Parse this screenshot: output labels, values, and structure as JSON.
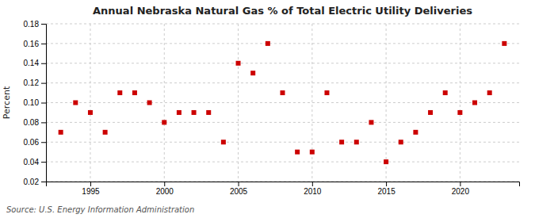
{
  "chart_data": {
    "type": "scatter",
    "title": "Annual Nebraska Natural Gas % of Total Electric Utility Deliveries",
    "ylabel": "Percent",
    "source": "Source: U.S. Energy Information Administration",
    "color": "#cc0000",
    "marker": "square",
    "grid": true,
    "x": [
      1993,
      1994,
      1995,
      1996,
      1997,
      1998,
      1999,
      2000,
      2001,
      2002,
      2003,
      2004,
      2005,
      2006,
      2007,
      2008,
      2009,
      2010,
      2011,
      2012,
      2013,
      2014,
      2015,
      2016,
      2017,
      2018,
      2019,
      2020,
      2021,
      2022,
      2023
    ],
    "values": [
      0.07,
      0.1,
      0.09,
      0.07,
      0.11,
      0.11,
      0.1,
      0.08,
      0.09,
      0.09,
      0.09,
      0.06,
      0.14,
      0.13,
      0.16,
      0.11,
      0.05,
      0.05,
      0.11,
      0.06,
      0.06,
      0.08,
      0.04,
      0.06,
      0.07,
      0.09,
      0.11,
      0.09,
      0.1,
      0.11,
      0.16
    ],
    "xlim": [
      1992,
      2024
    ],
    "ylim": [
      0.02,
      0.18
    ],
    "xticks": [
      1995,
      2000,
      2005,
      2010,
      2015,
      2020
    ],
    "yticks": [
      0.02,
      0.04,
      0.06,
      0.08,
      {
        "value": 0.1,
        "label": "0.10"
      },
      0.12,
      0.14,
      0.16,
      0.18
    ]
  }
}
